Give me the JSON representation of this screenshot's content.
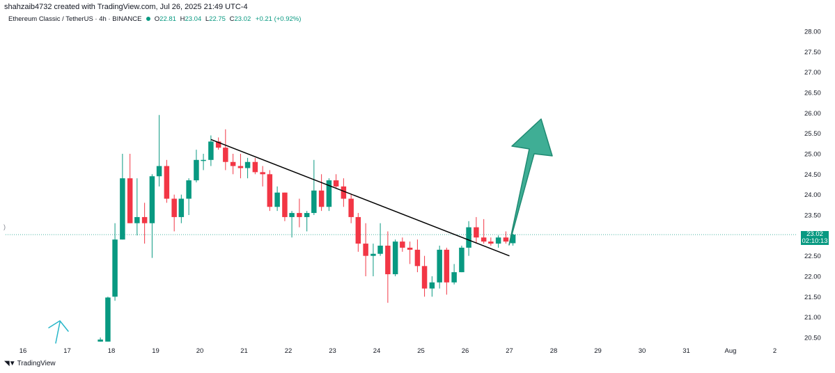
{
  "header": {
    "credit": "shahzaib4732 created with TradingView.com, Jul 26, 2025 21:49 UTC-4",
    "symbol": "Ethereum Classic / TetherUS · 4h · BINANCE",
    "o_label": "O",
    "o_val": "22.81",
    "h_label": "H",
    "h_val": "23.04",
    "l_label": "L",
    "l_val": "22.75",
    "c_label": "C",
    "c_val": "23.02",
    "change": "+0.21 (+0.92%)"
  },
  "price_tag": {
    "price": "23.02",
    "countdown": "02:10:13"
  },
  "left_marker": ")",
  "footer": {
    "brand": "TradingView"
  },
  "colors": {
    "up": "#089981",
    "down": "#f23645",
    "arrow_fill": "#3fae95",
    "arrow_stroke": "#1f8a72",
    "trendline": "#000000",
    "blue_arrow": "#26b6c8"
  },
  "chart_data": {
    "type": "candlestick",
    "y_ticks": [
      "28.00",
      "27.50",
      "27.00",
      "26.50",
      "26.00",
      "25.50",
      "25.00",
      "24.50",
      "24.00",
      "23.50",
      "23.00",
      "22.50",
      "22.00",
      "21.50",
      "21.00",
      "20.50"
    ],
    "x_ticks": [
      "16",
      "17",
      "18",
      "19",
      "20",
      "21",
      "22",
      "23",
      "24",
      "25",
      "26",
      "27",
      "28",
      "29",
      "30",
      "31",
      "Aug",
      "2"
    ],
    "ylim": [
      20.45,
      28.2
    ],
    "current_price": 23.02,
    "candles": [
      {
        "t": 17.75,
        "o": 20.4,
        "h": 20.5,
        "l": 20.4,
        "c": 20.45
      },
      {
        "t": 17.92,
        "o": 20.4,
        "h": 21.5,
        "l": 20.4,
        "c": 21.48
      },
      {
        "t": 18.08,
        "o": 21.5,
        "h": 23.3,
        "l": 21.4,
        "c": 22.9
      },
      {
        "t": 18.25,
        "o": 22.9,
        "h": 25.0,
        "l": 22.9,
        "c": 24.4
      },
      {
        "t": 18.42,
        "o": 24.4,
        "h": 25.0,
        "l": 23.3,
        "c": 23.3
      },
      {
        "t": 18.58,
        "o": 23.3,
        "h": 24.4,
        "l": 23.0,
        "c": 23.45
      },
      {
        "t": 18.75,
        "o": 23.45,
        "h": 23.8,
        "l": 22.8,
        "c": 23.3
      },
      {
        "t": 18.92,
        "o": 23.3,
        "h": 24.5,
        "l": 22.45,
        "c": 24.45
      },
      {
        "t": 19.08,
        "o": 24.45,
        "h": 25.95,
        "l": 24.2,
        "c": 24.7
      },
      {
        "t": 19.25,
        "o": 24.7,
        "h": 24.85,
        "l": 23.8,
        "c": 23.9
      },
      {
        "t": 19.42,
        "o": 23.9,
        "h": 24.0,
        "l": 23.1,
        "c": 23.45
      },
      {
        "t": 19.58,
        "o": 23.45,
        "h": 24.0,
        "l": 23.3,
        "c": 23.9
      },
      {
        "t": 19.75,
        "o": 23.9,
        "h": 24.4,
        "l": 23.5,
        "c": 24.35
      },
      {
        "t": 19.92,
        "o": 24.35,
        "h": 25.1,
        "l": 24.3,
        "c": 24.85
      },
      {
        "t": 20.08,
        "o": 24.85,
        "h": 25.0,
        "l": 24.6,
        "c": 24.85
      },
      {
        "t": 20.25,
        "o": 24.85,
        "h": 25.45,
        "l": 24.7,
        "c": 25.3
      },
      {
        "t": 20.42,
        "o": 25.3,
        "h": 25.4,
        "l": 25.1,
        "c": 25.15
      },
      {
        "t": 20.58,
        "o": 25.15,
        "h": 25.6,
        "l": 24.6,
        "c": 24.8
      },
      {
        "t": 20.75,
        "o": 24.8,
        "h": 25.0,
        "l": 24.5,
        "c": 24.7
      },
      {
        "t": 20.92,
        "o": 24.7,
        "h": 25.0,
        "l": 24.4,
        "c": 24.65
      },
      {
        "t": 21.08,
        "o": 24.65,
        "h": 24.9,
        "l": 24.4,
        "c": 24.8
      },
      {
        "t": 21.25,
        "o": 24.8,
        "h": 24.9,
        "l": 24.5,
        "c": 24.55
      },
      {
        "t": 21.42,
        "o": 24.55,
        "h": 24.7,
        "l": 24.2,
        "c": 24.5
      },
      {
        "t": 21.58,
        "o": 24.5,
        "h": 24.6,
        "l": 23.6,
        "c": 23.7
      },
      {
        "t": 21.75,
        "o": 23.7,
        "h": 24.2,
        "l": 23.6,
        "c": 24.05
      },
      {
        "t": 21.92,
        "o": 24.05,
        "h": 24.05,
        "l": 23.35,
        "c": 23.45
      },
      {
        "t": 22.08,
        "o": 23.45,
        "h": 23.6,
        "l": 22.95,
        "c": 23.55
      },
      {
        "t": 22.25,
        "o": 23.55,
        "h": 23.9,
        "l": 23.2,
        "c": 23.45
      },
      {
        "t": 22.42,
        "o": 23.45,
        "h": 23.6,
        "l": 23.1,
        "c": 23.55
      },
      {
        "t": 22.58,
        "o": 23.55,
        "h": 24.85,
        "l": 23.5,
        "c": 24.1
      },
      {
        "t": 22.75,
        "o": 24.1,
        "h": 24.5,
        "l": 23.6,
        "c": 23.7
      },
      {
        "t": 22.92,
        "o": 23.7,
        "h": 24.4,
        "l": 23.6,
        "c": 24.35
      },
      {
        "t": 23.08,
        "o": 24.35,
        "h": 24.5,
        "l": 24.15,
        "c": 24.2
      },
      {
        "t": 23.25,
        "o": 24.2,
        "h": 24.4,
        "l": 23.7,
        "c": 23.9
      },
      {
        "t": 23.42,
        "o": 23.9,
        "h": 24.0,
        "l": 23.3,
        "c": 23.45
      },
      {
        "t": 23.58,
        "o": 23.45,
        "h": 23.55,
        "l": 22.6,
        "c": 22.8
      },
      {
        "t": 23.75,
        "o": 22.8,
        "h": 23.3,
        "l": 22.0,
        "c": 22.5
      },
      {
        "t": 23.92,
        "o": 22.5,
        "h": 22.8,
        "l": 22.0,
        "c": 22.55
      },
      {
        "t": 24.08,
        "o": 22.55,
        "h": 23.3,
        "l": 22.5,
        "c": 22.75
      },
      {
        "t": 24.25,
        "o": 22.75,
        "h": 23.1,
        "l": 21.35,
        "c": 22.05
      },
      {
        "t": 24.42,
        "o": 22.05,
        "h": 22.9,
        "l": 22.0,
        "c": 22.85
      },
      {
        "t": 24.58,
        "o": 22.85,
        "h": 22.95,
        "l": 22.6,
        "c": 22.7
      },
      {
        "t": 24.75,
        "o": 22.7,
        "h": 22.85,
        "l": 22.3,
        "c": 22.65
      },
      {
        "t": 24.92,
        "o": 22.65,
        "h": 22.9,
        "l": 22.1,
        "c": 22.25
      },
      {
        "t": 25.08,
        "o": 22.25,
        "h": 22.5,
        "l": 21.5,
        "c": 21.7
      },
      {
        "t": 25.25,
        "o": 21.7,
        "h": 22.0,
        "l": 21.5,
        "c": 21.85
      },
      {
        "t": 25.42,
        "o": 21.85,
        "h": 22.75,
        "l": 21.7,
        "c": 22.65
      },
      {
        "t": 25.58,
        "o": 22.65,
        "h": 22.7,
        "l": 21.55,
        "c": 21.85
      },
      {
        "t": 25.75,
        "o": 21.85,
        "h": 22.3,
        "l": 21.8,
        "c": 22.1
      },
      {
        "t": 25.92,
        "o": 22.1,
        "h": 22.75,
        "l": 22.1,
        "c": 22.7
      },
      {
        "t": 26.08,
        "o": 22.7,
        "h": 23.35,
        "l": 22.5,
        "c": 23.2
      },
      {
        "t": 26.25,
        "o": 23.2,
        "h": 23.45,
        "l": 22.8,
        "c": 22.95
      },
      {
        "t": 26.42,
        "o": 22.95,
        "h": 23.4,
        "l": 22.8,
        "c": 22.85
      },
      {
        "t": 26.58,
        "o": 22.85,
        "h": 22.95,
        "l": 22.75,
        "c": 22.8
      },
      {
        "t": 26.75,
        "o": 22.8,
        "h": 23.0,
        "l": 22.7,
        "c": 22.95
      },
      {
        "t": 26.92,
        "o": 22.95,
        "h": 23.1,
        "l": 22.8,
        "c": 22.85
      },
      {
        "t": 27.08,
        "o": 22.81,
        "h": 23.04,
        "l": 22.75,
        "c": 23.02
      }
    ],
    "trendline": {
      "from": {
        "t": 20.25,
        "p": 25.35
      },
      "to": {
        "t": 27.0,
        "p": 22.5
      }
    },
    "annotations": [
      "green up arrow",
      "small blue up arrow"
    ]
  }
}
